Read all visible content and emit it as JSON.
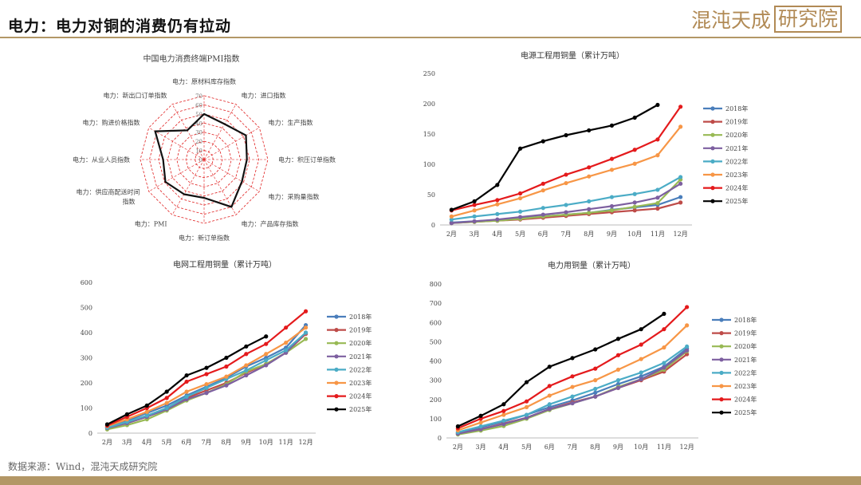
{
  "page": {
    "title": "电力：电力对铜的消费仍有拉动",
    "logo": "混沌天成",
    "logo_boxed": "研究院",
    "source": "数据来源：Wind，混沌天成研究院"
  },
  "colors": {
    "2018年": "#4a7ebb",
    "2019年": "#be4b48",
    "2020年": "#98b954",
    "2021年": "#7d5fa0",
    "2022年": "#4bacc6",
    "2023年": "#f79646",
    "2024年": "#e41a1c",
    "2025年": "#000000"
  },
  "chart_data": [
    {
      "type": "radar",
      "title": "中国电力消费终端PMI指数",
      "ticks": [
        0,
        10,
        20,
        30,
        40,
        50,
        60,
        70
      ],
      "rmax": 70,
      "axes": [
        "电力：原材料库存指数",
        "电力：进口指数",
        "电力：生产指数",
        "电力：积压订单指数",
        "电力：采购量指数",
        "电力：产品库存指数",
        "电力：新订单指数",
        "电力：PMI",
        "电力：供应商配送时间指数",
        "电力：从业人员指数",
        "电力：购进价格指数",
        "电力：新出口订单指数"
      ],
      "values": [
        50,
        45,
        53,
        47,
        48,
        60,
        42,
        44,
        49,
        45,
        62,
        37
      ]
    },
    {
      "type": "line",
      "title": "电源工程用铜量（累计万吨）",
      "categories": [
        "2月",
        "3月",
        "4月",
        "5月",
        "6月",
        "7月",
        "8月",
        "9月",
        "10月",
        "11月",
        "12月"
      ],
      "ylim": [
        0,
        250
      ],
      "yticks": [
        0,
        50,
        100,
        150,
        200,
        250
      ],
      "series": [
        {
          "name": "2018年",
          "values": [
            4,
            6,
            8,
            11,
            14,
            17,
            20,
            25,
            29,
            33,
            46
          ]
        },
        {
          "name": "2019年",
          "values": [
            3,
            5,
            7,
            9,
            12,
            15,
            18,
            21,
            24,
            27,
            37
          ]
        },
        {
          "name": "2020年",
          "values": [
            3,
            5,
            7,
            10,
            14,
            17,
            20,
            24,
            30,
            36,
            75
          ]
        },
        {
          "name": "2021年",
          "values": [
            3,
            6,
            9,
            13,
            17,
            21,
            26,
            31,
            37,
            45,
            68
          ]
        },
        {
          "name": "2022年",
          "values": [
            9,
            14,
            18,
            22,
            28,
            33,
            39,
            46,
            51,
            58,
            79
          ]
        },
        {
          "name": "2023年",
          "values": [
            14,
            24,
            34,
            44,
            57,
            69,
            80,
            91,
            101,
            115,
            162
          ]
        },
        {
          "name": "2024年",
          "values": [
            24,
            33,
            41,
            52,
            68,
            83,
            95,
            109,
            124,
            141,
            195
          ]
        },
        {
          "name": "2025年",
          "values": [
            25,
            39,
            66,
            126,
            138,
            148,
            156,
            164,
            177,
            198,
            null
          ]
        }
      ]
    },
    {
      "type": "line",
      "title": "电网工程用铜量（累计万吨）",
      "categories": [
        "2月",
        "3月",
        "4月",
        "5月",
        "6月",
        "7月",
        "8月",
        "9月",
        "10月",
        "11月",
        "12月"
      ],
      "ylim": [
        0,
        600
      ],
      "yticks": [
        0,
        100,
        200,
        300,
        400,
        500,
        600
      ],
      "series": [
        {
          "name": "2018年",
          "values": [
            25,
            50,
            80,
            110,
            150,
            185,
            220,
            265,
            300,
            340,
            430
          ]
        },
        {
          "name": "2019年",
          "values": [
            20,
            40,
            65,
            100,
            140,
            170,
            200,
            240,
            275,
            320,
            395
          ]
        },
        {
          "name": "2020年",
          "values": [
            15,
            32,
            55,
            90,
            130,
            160,
            195,
            245,
            275,
            320,
            375
          ]
        },
        {
          "name": "2021年",
          "values": [
            20,
            40,
            65,
            95,
            135,
            160,
            190,
            230,
            270,
            320,
            400
          ]
        },
        {
          "name": "2022年",
          "values": [
            22,
            45,
            70,
            100,
            145,
            180,
            215,
            250,
            290,
            330,
            400
          ]
        },
        {
          "name": "2023年",
          "values": [
            28,
            55,
            85,
            120,
            165,
            195,
            225,
            270,
            315,
            360,
            420
          ]
        },
        {
          "name": "2024年",
          "values": [
            30,
            65,
            100,
            140,
            205,
            235,
            265,
            315,
            355,
            420,
            485
          ]
        },
        {
          "name": "2025年",
          "values": [
            35,
            75,
            110,
            165,
            230,
            260,
            300,
            345,
            385,
            null,
            null
          ]
        }
      ]
    },
    {
      "type": "line",
      "title": "电力用铜量（累计万吨）",
      "categories": [
        "2月",
        "3月",
        "4月",
        "5月",
        "6月",
        "7月",
        "8月",
        "9月",
        "10月",
        "11月",
        "12月"
      ],
      "ylim": [
        0,
        800
      ],
      "yticks": [
        0,
        100,
        200,
        300,
        400,
        500,
        600,
        700,
        800
      ],
      "series": [
        {
          "name": "2018年",
          "values": [
            28,
            55,
            85,
            120,
            160,
            195,
            235,
            280,
            320,
            370,
            465
          ]
        },
        {
          "name": "2019年",
          "values": [
            22,
            45,
            75,
            105,
            150,
            185,
            215,
            260,
            300,
            345,
            435
          ]
        },
        {
          "name": "2020年",
          "values": [
            18,
            38,
            62,
            100,
            145,
            180,
            215,
            265,
            305,
            355,
            450
          ]
        },
        {
          "name": "2021年",
          "values": [
            22,
            45,
            72,
            105,
            150,
            180,
            215,
            260,
            305,
            365,
            455
          ]
        },
        {
          "name": "2022年",
          "values": [
            30,
            60,
            90,
            120,
            175,
            215,
            255,
            300,
            340,
            390,
            475
          ]
        },
        {
          "name": "2023年",
          "values": [
            40,
            80,
            120,
            160,
            220,
            265,
            300,
            355,
            410,
            470,
            585
          ]
        },
        {
          "name": "2024年",
          "values": [
            50,
            100,
            140,
            190,
            270,
            320,
            360,
            430,
            485,
            565,
            680
          ]
        },
        {
          "name": "2025年",
          "values": [
            60,
            115,
            175,
            290,
            370,
            415,
            460,
            515,
            565,
            645,
            null
          ]
        }
      ]
    }
  ]
}
